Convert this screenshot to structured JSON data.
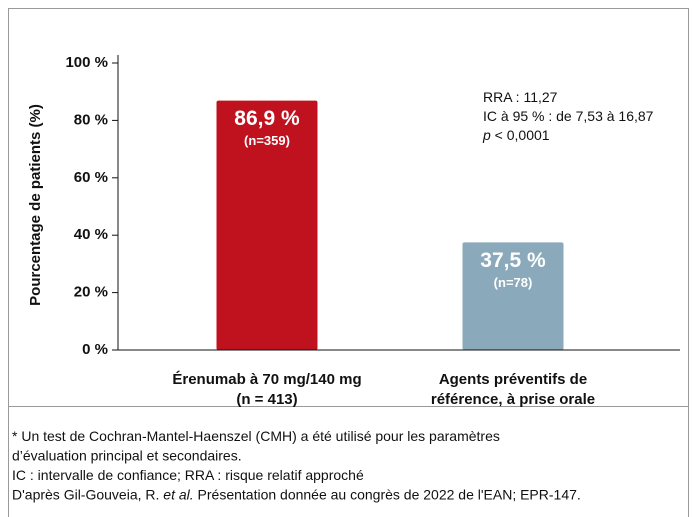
{
  "chart_data": {
    "type": "bar",
    "y_label": "Pourcentage de patients (%)",
    "categories": [
      [
        "Érenumab à 70 mg/140 mg",
        "(n = 413)"
      ],
      [
        "Agents préventifs de",
        "référence, à prise orale"
      ]
    ],
    "values": [
      86.9,
      37.5
    ],
    "value_labels": [
      "86,9 %",
      "37,5 %"
    ],
    "n_labels": [
      "(n=359)",
      "(n=78)"
    ],
    "colors": [
      "#c0111f",
      "#8aa9bb"
    ],
    "ylim": [
      0,
      100
    ],
    "yticks": [
      {
        "value": 0,
        "label": "0 %"
      },
      {
        "value": 20,
        "label": "20 %"
      },
      {
        "value": 40,
        "label": "40 %"
      },
      {
        "value": 60,
        "label": "60 %"
      },
      {
        "value": 80,
        "label": "80 %"
      },
      {
        "value": 100,
        "label": "100 %"
      }
    ],
    "stats": [
      {
        "text": "RRA : 11,27"
      },
      {
        "text": "IC à 95 % : de 7,53 à 16,87"
      },
      {
        "italic": "p",
        "text": " < 0,0001"
      }
    ]
  },
  "footnotes": [
    [
      {
        "text": "* Un test de Cochran-Mantel-Haenszel (CMH) a été utilisé pour les paramètres"
      }
    ],
    [
      {
        "text": "d’évaluation principal et secondaires."
      }
    ],
    [
      {
        "text": "IC : intervalle de confiance; RRA : risque relatif approché"
      }
    ],
    [
      {
        "text": "D'après Gil-Gouveia, R. "
      },
      {
        "italic": "et al."
      },
      {
        "text": " Présentation donnée au congrès de 2022 de l'EAN; EPR-147."
      }
    ]
  ]
}
